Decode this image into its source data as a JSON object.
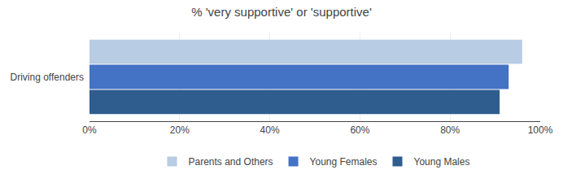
{
  "chart_data": {
    "type": "bar",
    "orientation": "horizontal",
    "title": "% 'very supportive' or 'supportive'",
    "categories": [
      "Driving offenders"
    ],
    "series": [
      {
        "name": "Parents and Others",
        "color": "#b8cce4",
        "values": [
          0.96
        ]
      },
      {
        "name": "Young Females",
        "color": "#4472c4",
        "values": [
          0.93
        ]
      },
      {
        "name": "Young Males",
        "color": "#2e5d8e",
        "values": [
          0.91
        ]
      }
    ],
    "xlim": [
      0,
      1.0
    ],
    "xticks": [
      {
        "value": 0,
        "label": "0%"
      },
      {
        "value": 0.2,
        "label": "20%"
      },
      {
        "value": 0.4,
        "label": "40%"
      },
      {
        "value": 0.6,
        "label": "60%"
      },
      {
        "value": 0.8,
        "label": "80%"
      },
      {
        "value": 1.0,
        "label": "100%"
      }
    ],
    "grid": true,
    "legend": "bottom"
  }
}
